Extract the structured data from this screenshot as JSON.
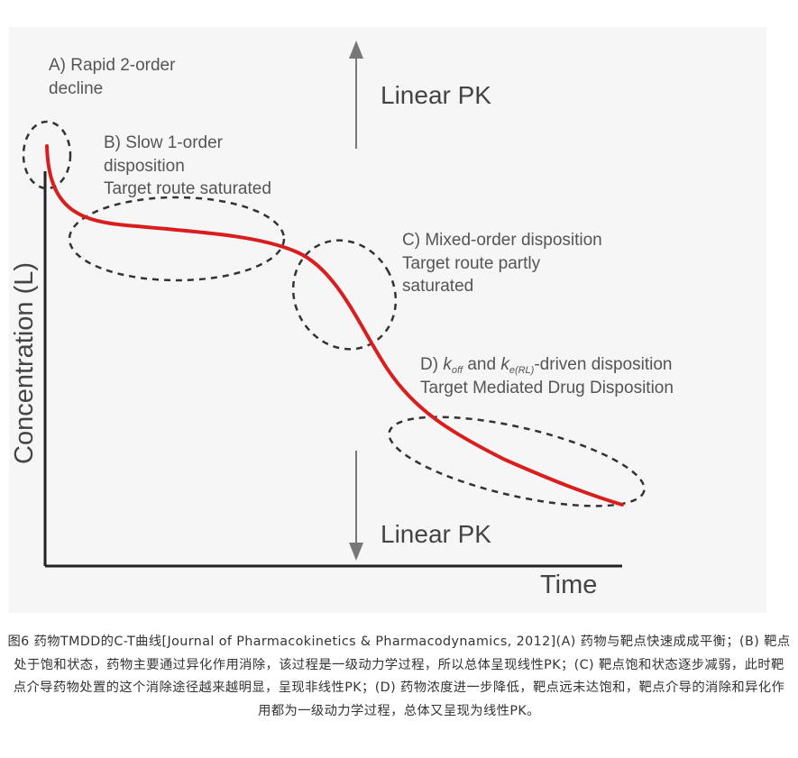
{
  "figure": {
    "annotation_a": {
      "line1": "A) Rapid 2-order",
      "line2": "decline"
    },
    "annotation_b": {
      "line1": "B) Slow 1-order",
      "line2": "disposition",
      "line3": "Target route saturated"
    },
    "annotation_c": {
      "line1": "C) Mixed-order disposition",
      "line2": "Target route partly",
      "line3": "saturated"
    },
    "annotation_d": {
      "prefix": "D) ",
      "k1": "k",
      "k1_sub": "off",
      "mid": " and ",
      "k2": "k",
      "k2_sub": "e(RL)",
      "suffix": "-driven disposition",
      "line2": "Target Mediated Drug Disposition"
    },
    "linear_pk_top": "Linear PK",
    "linear_pk_bottom": "Linear PK",
    "y_axis_label": "Concentration (L)",
    "x_axis_label": "Time",
    "colors": {
      "curve": "#d81e1e",
      "axis": "#222222",
      "ellipse": "#333333",
      "arrow": "#777777"
    }
  },
  "caption": "图6 药物TMDD的C-T曲线[Journal of Pharmacokinetics & Pharmacodynamics, 2012](A) 药物与靶点快速成成平衡；(B) 靶点处于饱和状态，药物主要通过异化作用消除，该过程是一级动力学过程，所以总体呈现线性PK；(C) 靶点饱和状态逐步减弱，此时靶点介导药物处置的这个消除途径越来越明显，呈现非线性PK；(D) 药物浓度进一步降低，靶点远未达饱和，靶点介导的消除和异化作用都为一级动力学过程，总体又呈现为线性PK。"
}
